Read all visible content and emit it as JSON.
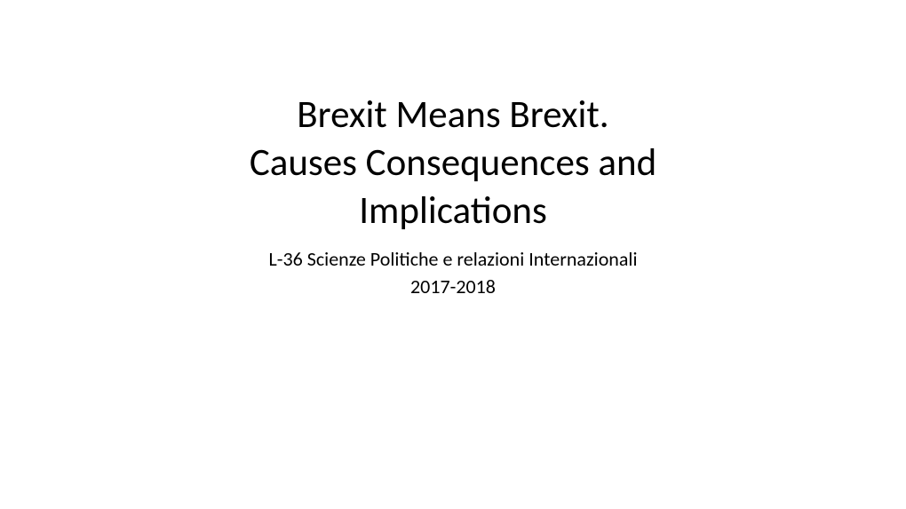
{
  "slide": {
    "background_color": "#ffffff",
    "text_color": "#000000",
    "title": {
      "line1": "Brexit Means Brexit.",
      "line2": "Causes Consequences and",
      "line3": "Implications",
      "fontsize": 43,
      "fontweight": 400
    },
    "subtitle": {
      "line1": "L-36 Scienze Politiche e relazioni Internazionali",
      "line2": "2017-2018",
      "fontsize": 22,
      "fontweight": 400
    }
  }
}
